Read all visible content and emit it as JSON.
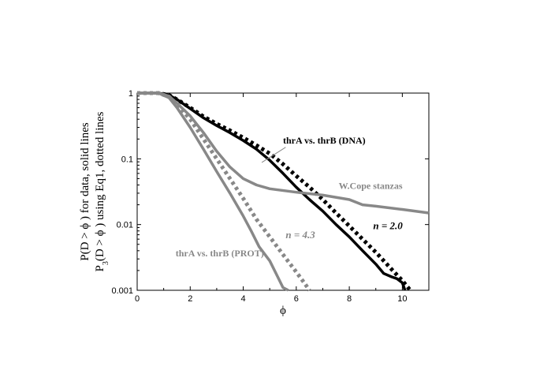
{
  "chart_data": {
    "type": "line",
    "title": "",
    "xlabel": "ϕ",
    "ylabel_line1": "P(D > ϕ ) for data, solid lines",
    "ylabel_line2_prefix": "P",
    "ylabel_line2_sub": "3",
    "ylabel_line2_rest": "(D > ϕ ) using Eq1, dotted lines",
    "xlim": [
      0,
      11
    ],
    "ylim": [
      0.001,
      1
    ],
    "yscale": "log",
    "grid": false,
    "xticks": [
      0,
      2,
      4,
      6,
      8,
      10
    ],
    "xtick_labels": [
      "0",
      "2",
      "4",
      "6",
      "8",
      "10"
    ],
    "yticks": [
      0.001,
      0.01,
      0.1,
      1
    ],
    "ytick_labels": [
      "0.001",
      "0.01",
      "0.1",
      "1"
    ],
    "colors": {
      "black": "#000000",
      "gray": "#888888"
    },
    "series": [
      {
        "style": "solid",
        "color": "#000000",
        "x": [
          0,
          0.8,
          1.2,
          1.5,
          2.0,
          2.5,
          3.0,
          3.5,
          4.0,
          4.5,
          5.0,
          5.5,
          6.0,
          6.5,
          7.0,
          7.5,
          8.0,
          8.5,
          9.0,
          9.3,
          9.6,
          9.8,
          10.0,
          10.1
        ],
        "y": [
          1,
          1,
          0.93,
          0.8,
          0.58,
          0.42,
          0.32,
          0.25,
          0.19,
          0.14,
          0.095,
          0.06,
          0.037,
          0.024,
          0.016,
          0.01,
          0.0065,
          0.004,
          0.0025,
          0.0018,
          0.0016,
          0.0015,
          0.0013,
          0.001
        ]
      },
      {
        "style": "dotted",
        "color": "#000000",
        "x": [
          0,
          0.8,
          1.2,
          1.5,
          2.0,
          2.5,
          3.0,
          3.5,
          4.0,
          4.5,
          5.0,
          5.5,
          6.0,
          6.5,
          7.0,
          7.5,
          8.0,
          8.5,
          9.0,
          9.5,
          10.0,
          10.3
        ],
        "y": [
          1,
          1,
          0.93,
          0.8,
          0.6,
          0.44,
          0.34,
          0.27,
          0.21,
          0.16,
          0.12,
          0.083,
          0.055,
          0.037,
          0.024,
          0.015,
          0.0095,
          0.006,
          0.0038,
          0.0023,
          0.0014,
          0.001
        ]
      },
      {
        "style": "solid",
        "color": "#888888",
        "x": [
          0,
          0.8,
          1.2,
          1.5,
          2.0,
          2.5,
          3.0,
          3.5,
          4.0,
          4.3,
          4.6,
          5.0,
          5.3,
          5.5,
          5.7
        ],
        "y": [
          1,
          1,
          0.85,
          0.6,
          0.3,
          0.14,
          0.064,
          0.03,
          0.0135,
          0.008,
          0.0046,
          0.0028,
          0.0016,
          0.0011,
          0.001
        ]
      },
      {
        "style": "dotted",
        "color": "#888888",
        "x": [
          0,
          0.8,
          1.2,
          1.5,
          2.0,
          2.5,
          3.0,
          3.5,
          4.0,
          4.5,
          5.0,
          5.5,
          6.0,
          6.3,
          6.5
        ],
        "y": [
          1,
          1,
          0.88,
          0.68,
          0.4,
          0.2,
          0.1,
          0.05,
          0.025,
          0.012,
          0.0065,
          0.0035,
          0.0019,
          0.0013,
          0.001
        ]
      },
      {
        "style": "solid",
        "color": "#888888",
        "x": [
          0,
          0.8,
          1.2,
          1.5,
          2.0,
          2.5,
          3.0,
          3.5,
          4.0,
          4.5,
          5.0,
          6.0,
          7.0,
          8.0,
          8.5,
          9.0,
          10.0,
          11.0
        ],
        "y": [
          1,
          1,
          0.9,
          0.7,
          0.45,
          0.25,
          0.13,
          0.075,
          0.05,
          0.04,
          0.035,
          0.031,
          0.028,
          0.024,
          0.02,
          0.019,
          0.017,
          0.015
        ]
      }
    ],
    "annotations": [
      {
        "text": "thrA vs. thrB (DNA)",
        "x": 5.5,
        "y": 0.17,
        "color": "#000000",
        "italic": false
      },
      {
        "text": "W.Cope stanzas",
        "x": 7.6,
        "y": 0.035,
        "color": "#888888",
        "italic": false
      },
      {
        "text": "n = 2.0",
        "x": 8.9,
        "y": 0.0085,
        "color": "#000000",
        "italic": true
      },
      {
        "text": "n = 4.3",
        "x": 5.6,
        "y": 0.0062,
        "color": "#888888",
        "italic": true
      },
      {
        "text": "thrA vs. thrB (PROT)",
        "x": 1.45,
        "y": 0.0033,
        "color": "#888888",
        "italic": false
      }
    ],
    "pointer_lines": [
      {
        "color": "#888888",
        "x1": 5.6,
        "y1": 0.15,
        "x2": 4.7,
        "y2": 0.088
      }
    ]
  }
}
